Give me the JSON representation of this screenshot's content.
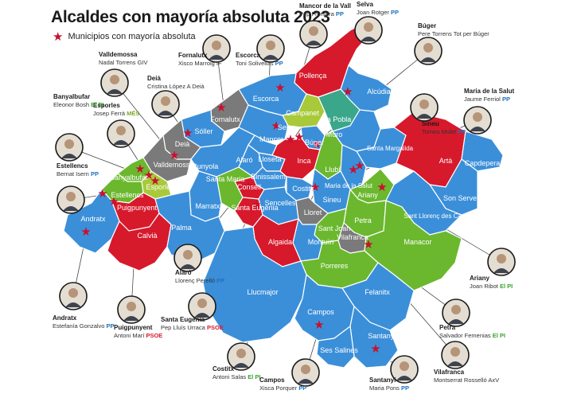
{
  "title": "Alcaldes con mayoría absoluta 2023",
  "legend_label": "Municipios con mayoría absoluta",
  "colors": {
    "PP": "#3b8fd9",
    "PSOE": "#d7192c",
    "EL_PI": "#6bb82e",
    "MES": "#a8c93a",
    "AxV": "#7a7a7a",
    "Sa_Pobla": "#3aa68a",
    "star": "#c8102e"
  },
  "municipalities": [
    {
      "name": "Pollença"
    },
    {
      "name": "Alcúdia"
    },
    {
      "name": "Escorca"
    },
    {
      "name": "Fornalutx"
    },
    {
      "name": "Campanet"
    },
    {
      "name": "Sa Pobla"
    },
    {
      "name": "Sóller"
    },
    {
      "name": "Deià"
    },
    {
      "name": "Selva"
    },
    {
      "name": "Búger"
    },
    {
      "name": "Muro"
    },
    {
      "name": "Mancor"
    },
    {
      "name": "Valldemossa"
    },
    {
      "name": "Bunyola"
    },
    {
      "name": "Alaró"
    },
    {
      "name": "Lloseta"
    },
    {
      "name": "Inca"
    },
    {
      "name": "Santa Margalida"
    },
    {
      "name": "Artà"
    },
    {
      "name": "Capdepera"
    },
    {
      "name": "Banyalbufar"
    },
    {
      "name": "Esporles"
    },
    {
      "name": "Estellencs"
    },
    {
      "name": "Binissalem"
    },
    {
      "name": "Llubí"
    },
    {
      "name": "Maria de la Salut"
    },
    {
      "name": "Consell"
    },
    {
      "name": "Santa Maria"
    },
    {
      "name": "Costitx"
    },
    {
      "name": "Sineu"
    },
    {
      "name": "Ariany"
    },
    {
      "name": "Son Servera"
    },
    {
      "name": "Puigpunyent"
    },
    {
      "name": "Sencelles"
    },
    {
      "name": "Lloret"
    },
    {
      "name": "Petra"
    },
    {
      "name": "Sant Llorenç des Cardassar"
    },
    {
      "name": "Andratx"
    },
    {
      "name": "Marratxí"
    },
    {
      "name": "Santa Eugènia"
    },
    {
      "name": "Sant Joan"
    },
    {
      "name": "Calvià"
    },
    {
      "name": "Palma"
    },
    {
      "name": "Montuïri"
    },
    {
      "name": "Vilafranca"
    },
    {
      "name": "Manacor"
    },
    {
      "name": "Algaida"
    },
    {
      "name": "Porreres"
    },
    {
      "name": "Llucmajor"
    },
    {
      "name": "Felanitx"
    },
    {
      "name": "Campos"
    },
    {
      "name": "Santanyí"
    },
    {
      "name": "Ses Salines"
    }
  ],
  "mayors": [
    {
      "municipality": "Valldemossa",
      "person": "Nadal Torrens GIV",
      "party": ""
    },
    {
      "municipality": "Fornalutx",
      "person": "Xisco Marroig IF",
      "party": ""
    },
    {
      "municipality": "Escorca",
      "person": "Toni Solivellas",
      "party": "PP"
    },
    {
      "municipality": "Mancor de la Vall",
      "person": "Pep Frontera",
      "party": "PP"
    },
    {
      "municipality": "Selva",
      "person": "Joan Rotger",
      "party": "PP"
    },
    {
      "municipality": "Búger",
      "person": "Pere Torrens Tot per Búger",
      "party": ""
    },
    {
      "municipality": "Deià",
      "person": "Cristina López A Deià",
      "party": ""
    },
    {
      "municipality": "Esporles",
      "person": "Josep Ferrà",
      "party": "MÉS"
    },
    {
      "municipality": "Banyalbufar",
      "person": "Eleonor Bosh",
      "party": "El PI"
    },
    {
      "municipality": "Sineu",
      "person": "Tomeu Mulet",
      "party": "PP"
    },
    {
      "municipality": "Maria de la Salut",
      "person": "Jaume Ferriol",
      "party": "PP"
    },
    {
      "municipality": "Estellencs",
      "person": "Bernat Isern",
      "party": "PP"
    },
    {
      "municipality": "Alaró",
      "person": "Llorenç Perelló",
      "party": "PP"
    },
    {
      "municipality": "Andratx",
      "person": "Estefanía Gonzalvo",
      "party": "PP"
    },
    {
      "municipality": "Puigpunyent",
      "person": "Antoni Marí",
      "party": "PSOE"
    },
    {
      "municipality": "Santa Eugènia",
      "person": "Pep Lluís Urraca",
      "party": "PSOE"
    },
    {
      "municipality": "Costitx",
      "person": "Antoni Salas",
      "party": "El PI"
    },
    {
      "municipality": "Campos",
      "person": "Xisca Porquer",
      "party": "PP"
    },
    {
      "municipality": "Santanyí",
      "person": "Maria Pons",
      "party": "PP"
    },
    {
      "municipality": "Ariany",
      "person": "Joan Ribot",
      "party": "El PI"
    },
    {
      "municipality": "Petra",
      "person": "Salvador Femenias",
      "party": "El PI"
    },
    {
      "municipality": "Vilafranca",
      "person": "Montserrat Rosselló AxV",
      "party": ""
    }
  ]
}
